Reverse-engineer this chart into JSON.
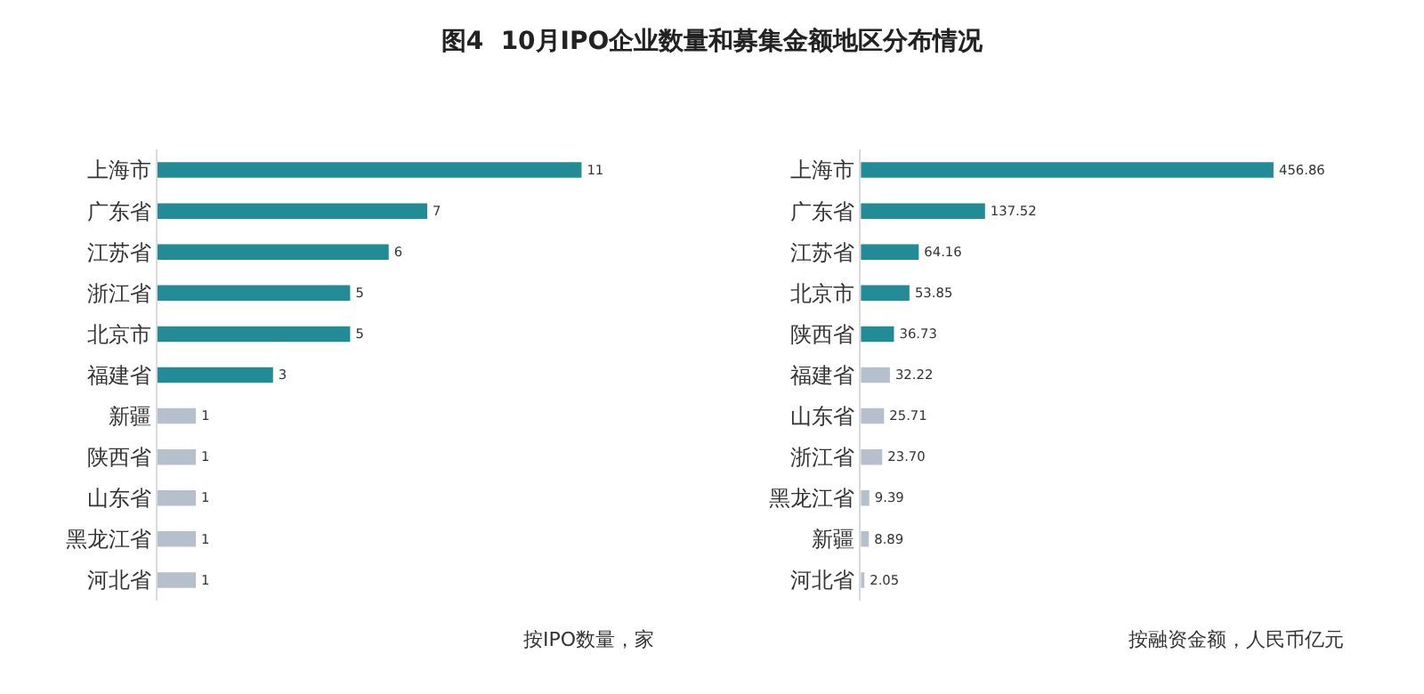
{
  "chart_data": [
    {
      "type": "bar",
      "orientation": "horizontal",
      "title": "图4  10月IPO企业数量和募集金额地区分布情况",
      "categories": [
        "上海市",
        "广东省",
        "江苏省",
        "浙江省",
        "北京市",
        "福建省",
        "新疆",
        "陕西省",
        "山东省",
        "黑龙江省",
        "河北省"
      ],
      "values": [
        11,
        7,
        6,
        5,
        5,
        3,
        1,
        1,
        1,
        1,
        1
      ],
      "colors": [
        "#238b96",
        "#238b96",
        "#238b96",
        "#238b96",
        "#238b96",
        "#238b96",
        "#b6c0cc",
        "#b6c0cc",
        "#b6c0cc",
        "#b6c0cc",
        "#b6c0cc"
      ],
      "data_labels": true,
      "tick_labels": "y",
      "annotations": [
        "按IPO数量，家"
      ]
    },
    {
      "type": "bar",
      "orientation": "horizontal",
      "categories": [
        "上海市",
        "广东省",
        "江苏省",
        "北京市",
        "陕西省",
        "福建省",
        "山东省",
        "浙江省",
        "黑龙江省",
        "新疆",
        "河北省"
      ],
      "values": [
        456.86,
        137.52,
        64.16,
        53.85,
        36.73,
        32.22,
        25.71,
        23.7,
        9.39,
        8.89,
        2.05
      ],
      "value_labels": [
        "456.86",
        "137.52",
        "64.16",
        "53.85",
        "36.73",
        "32.22",
        "25.71",
        "23.70",
        "9.39",
        "8.89",
        "2.05"
      ],
      "colors": [
        "#238b96",
        "#238b96",
        "#238b96",
        "#238b96",
        "#238b96",
        "#b6c0cc",
        "#b6c0cc",
        "#b6c0cc",
        "#b6c0cc",
        "#b6c0cc",
        "#b6c0cc"
      ],
      "tick_labels": "y",
      "annotations": [
        "按融资金额，人民币亿元"
      ]
    }
  ]
}
